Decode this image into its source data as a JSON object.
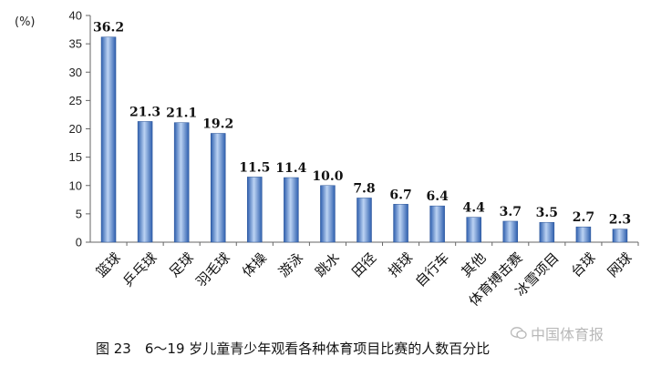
{
  "chart_data": {
    "type": "bar",
    "ylabel": "(%)",
    "ylim": [
      0,
      40
    ],
    "yticks": [
      0,
      5,
      10,
      15,
      20,
      25,
      30,
      35,
      40
    ],
    "categories": [
      "篮球",
      "乒乓球",
      "足球",
      "羽毛球",
      "体操",
      "游泳",
      "跳水",
      "田径",
      "排球",
      "自行车",
      "其他",
      "体育搏击赛",
      "冰雪项目",
      "台球",
      "网球"
    ],
    "values": [
      36.2,
      21.3,
      21.1,
      19.2,
      11.5,
      11.4,
      10.0,
      7.8,
      6.7,
      6.4,
      4.4,
      3.7,
      3.5,
      2.7,
      2.3
    ],
    "value_labels": [
      "36.2",
      "21.3",
      "21.1",
      "19.2",
      "11.5",
      "11.4",
      "10.0",
      "7.8",
      "6.7",
      "6.4",
      "4.4",
      "3.7",
      "3.5",
      "2.7",
      "2.3"
    ],
    "grid": false,
    "bar_color": "#4a7fcf"
  },
  "caption": "图 23　6～19 岁儿童青少年观看各种体育项目比赛的人数百分比",
  "watermark": {
    "icon": "wechat-icon",
    "text": "中国体育报"
  }
}
